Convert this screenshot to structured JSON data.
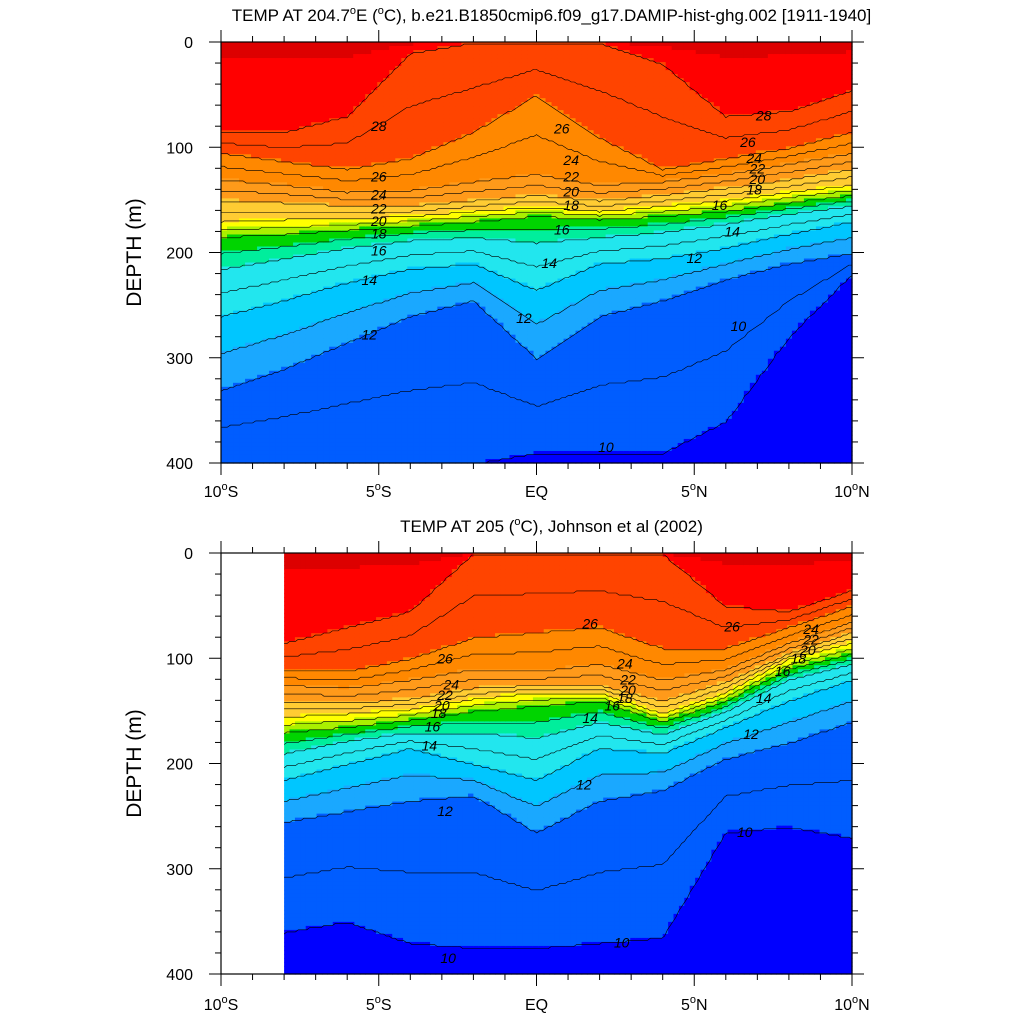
{
  "chart_data": [
    {
      "type": "heatmap",
      "subtype": "filled-contour",
      "title_prefix": "TEMP AT 204.7",
      "title_deg": "o",
      "title_suffix": "E (",
      "title_unit_deg": "o",
      "title_rest": "C), b.e21.B1850cmip6.f09_g17.DAMIP-hist-ghg.002 [1911-1940]",
      "ylabel": "DEPTH (m)",
      "ylim": [
        0,
        400
      ],
      "y_inverted": true,
      "xlim": [
        -10,
        10
      ],
      "x_ticks": [
        -10,
        -5,
        0,
        5,
        10
      ],
      "x_tick_labels": [
        {
          "num": "10",
          "deg": "o",
          "hem": "S"
        },
        {
          "num": "5",
          "deg": "o",
          "hem": "S"
        },
        {
          "num": "EQ",
          "deg": "",
          "hem": ""
        },
        {
          "num": "5",
          "deg": "o",
          "hem": "N"
        },
        {
          "num": "10",
          "deg": "o",
          "hem": "N"
        }
      ],
      "y_ticks": [
        0,
        100,
        200,
        300,
        400
      ],
      "y_tick_labels": [
        "0",
        "100",
        "200",
        "300",
        "400"
      ],
      "data_start_lat": -10,
      "contour_levels": [
        10,
        12,
        14,
        16,
        18,
        20,
        22,
        24,
        26,
        28
      ],
      "isotherm_depths": {
        "x": [
          -10,
          -8,
          -6,
          -4,
          -2,
          0,
          2,
          4,
          6,
          8,
          10
        ],
        "t28": [
          85,
          85,
          70,
          10,
          0,
          0,
          0,
          20,
          70,
          65,
          45
        ],
        "t26": [
          105,
          113,
          120,
          110,
          85,
          50,
          90,
          120,
          110,
          100,
          85
        ],
        "t24": [
          130,
          135,
          142,
          140,
          132,
          125,
          135,
          132,
          125,
          115,
          105
        ],
        "t22": [
          150,
          152,
          155,
          155,
          150,
          145,
          150,
          145,
          138,
          130,
          120
        ],
        "t20": [
          170,
          168,
          167,
          165,
          160,
          156,
          160,
          155,
          150,
          142,
          135
        ],
        "t18": [
          185,
          182,
          178,
          174,
          170,
          165,
          168,
          165,
          160,
          152,
          145
        ],
        "t16": [
          215,
          205,
          195,
          188,
          185,
          190,
          185,
          180,
          172,
          163,
          155
        ],
        "t14": [
          260,
          245,
          228,
          215,
          210,
          235,
          210,
          205,
          195,
          182,
          170
        ],
        "t12": [
          330,
          310,
          285,
          260,
          245,
          300,
          260,
          245,
          225,
          210,
          200
        ],
        "t10": [
          400,
          400,
          400,
          400,
          400,
          390,
          390,
          390,
          360,
          280,
          220
        ]
      },
      "labels": [
        {
          "t": "28",
          "x": -5,
          "y": 80
        },
        {
          "t": "26",
          "x": 0.8,
          "y": 82
        },
        {
          "t": "28",
          "x": 7.2,
          "y": 70
        },
        {
          "t": "26",
          "x": 6.7,
          "y": 95
        },
        {
          "t": "24",
          "x": 6.9,
          "y": 110
        },
        {
          "t": "22",
          "x": 7.0,
          "y": 120
        },
        {
          "t": "20",
          "x": 7.0,
          "y": 130
        },
        {
          "t": "18",
          "x": 6.9,
          "y": 140
        },
        {
          "t": "16",
          "x": 5.8,
          "y": 155
        },
        {
          "t": "14",
          "x": 6.2,
          "y": 180
        },
        {
          "t": "12",
          "x": 5.0,
          "y": 205
        },
        {
          "t": "10",
          "x": 6.4,
          "y": 270
        },
        {
          "t": "10",
          "x": 2.2,
          "y": 385
        },
        {
          "t": "26",
          "x": -5.0,
          "y": 128
        },
        {
          "t": "24",
          "x": -5.0,
          "y": 145
        },
        {
          "t": "22",
          "x": -5.0,
          "y": 158
        },
        {
          "t": "20",
          "x": -5.0,
          "y": 170
        },
        {
          "t": "18",
          "x": -5.0,
          "y": 182
        },
        {
          "t": "16",
          "x": -5.0,
          "y": 198
        },
        {
          "t": "14",
          "x": -5.3,
          "y": 226
        },
        {
          "t": "12",
          "x": -5.3,
          "y": 278
        },
        {
          "t": "24",
          "x": 1.1,
          "y": 112
        },
        {
          "t": "22",
          "x": 1.1,
          "y": 128
        },
        {
          "t": "20",
          "x": 1.1,
          "y": 142
        },
        {
          "t": "18",
          "x": 1.1,
          "y": 155
        },
        {
          "t": "16",
          "x": 0.8,
          "y": 178
        },
        {
          "t": "14",
          "x": 0.4,
          "y": 210
        },
        {
          "t": "12",
          "x": -0.4,
          "y": 262
        }
      ]
    },
    {
      "type": "heatmap",
      "subtype": "filled-contour",
      "title_prefix": "TEMP AT 205 (",
      "title_deg": "o",
      "title_suffix": "C), Johnson et al (2002)",
      "title_unit_deg": "",
      "title_rest": "",
      "ylabel": "DEPTH (m)",
      "ylim": [
        0,
        400
      ],
      "y_inverted": true,
      "xlim": [
        -10,
        10
      ],
      "x_ticks": [
        -10,
        -5,
        0,
        5,
        10
      ],
      "x_tick_labels": [
        {
          "num": "10",
          "deg": "o",
          "hem": "S"
        },
        {
          "num": "5",
          "deg": "o",
          "hem": "S"
        },
        {
          "num": "EQ",
          "deg": "",
          "hem": ""
        },
        {
          "num": "5",
          "deg": "o",
          "hem": "N"
        },
        {
          "num": "10",
          "deg": "o",
          "hem": "N"
        }
      ],
      "y_ticks": [
        0,
        100,
        200,
        300,
        400
      ],
      "y_tick_labels": [
        "0",
        "100",
        "200",
        "300",
        "400"
      ],
      "data_start_lat": -8,
      "contour_levels": [
        10,
        12,
        14,
        16,
        18,
        20,
        22,
        24,
        26,
        28
      ],
      "isotherm_depths": {
        "x": [
          -8,
          -6,
          -4,
          -2,
          0,
          2,
          4,
          6,
          8,
          10
        ],
        "t28": [
          85,
          70,
          55,
          0,
          0,
          0,
          0,
          50,
          55,
          35
        ],
        "t26": [
          110,
          112,
          100,
          80,
          75,
          70,
          90,
          90,
          70,
          50
        ],
        "t24": [
          125,
          128,
          120,
          110,
          112,
          105,
          120,
          110,
          85,
          65
        ],
        "t22": [
          140,
          142,
          138,
          128,
          125,
          125,
          140,
          122,
          95,
          75
        ],
        "t20": [
          155,
          152,
          148,
          138,
          132,
          132,
          152,
          132,
          100,
          85
        ],
        "t18": [
          170,
          165,
          158,
          150,
          145,
          140,
          160,
          140,
          110,
          95
        ],
        "t16": [
          190,
          178,
          170,
          170,
          175,
          160,
          172,
          150,
          120,
          105
        ],
        "t14": [
          215,
          200,
          185,
          200,
          215,
          185,
          190,
          165,
          140,
          120
        ],
        "t12": [
          255,
          245,
          235,
          230,
          265,
          235,
          225,
          195,
          180,
          160
        ],
        "t10": [
          360,
          350,
          370,
          375,
          375,
          370,
          365,
          265,
          260,
          270
        ]
      },
      "labels": [
        {
          "t": "26",
          "x": -2.9,
          "y": 100
        },
        {
          "t": "26",
          "x": 1.7,
          "y": 67
        },
        {
          "t": "26",
          "x": 6.2,
          "y": 70
        },
        {
          "t": "24",
          "x": -2.7,
          "y": 125
        },
        {
          "t": "22",
          "x": -2.9,
          "y": 135
        },
        {
          "t": "20",
          "x": -3.0,
          "y": 145
        },
        {
          "t": "18",
          "x": -3.1,
          "y": 152
        },
        {
          "t": "16",
          "x": -3.3,
          "y": 165
        },
        {
          "t": "14",
          "x": -3.4,
          "y": 183
        },
        {
          "t": "12",
          "x": -2.9,
          "y": 245
        },
        {
          "t": "24",
          "x": 2.8,
          "y": 105
        },
        {
          "t": "22",
          "x": 2.9,
          "y": 120
        },
        {
          "t": "20",
          "x": 2.9,
          "y": 130
        },
        {
          "t": "18",
          "x": 2.8,
          "y": 138
        },
        {
          "t": "16",
          "x": 2.4,
          "y": 145
        },
        {
          "t": "14",
          "x": 1.7,
          "y": 157
        },
        {
          "t": "12",
          "x": 1.5,
          "y": 220
        },
        {
          "t": "10",
          "x": 2.7,
          "y": 370
        },
        {
          "t": "10",
          "x": -2.8,
          "y": 385
        },
        {
          "t": "14",
          "x": 7.2,
          "y": 138
        },
        {
          "t": "16",
          "x": 7.8,
          "y": 112
        },
        {
          "t": "12",
          "x": 6.8,
          "y": 172
        },
        {
          "t": "10",
          "x": 6.6,
          "y": 265
        },
        {
          "t": "24",
          "x": 8.7,
          "y": 72
        },
        {
          "t": "22",
          "x": 8.7,
          "y": 82
        },
        {
          "t": "20",
          "x": 8.6,
          "y": 92
        },
        {
          "t": "18",
          "x": 8.3,
          "y": 100
        }
      ]
    }
  ],
  "colors": {
    "fill_levels": [
      "#0000ff",
      "#005dff",
      "#1aa8ff",
      "#00c6ff",
      "#22e6ee",
      "#00ee9c",
      "#00d400",
      "#aaf000",
      "#ffff00",
      "#ffcc33",
      "#ff9a1a",
      "#ff8800",
      "#ff4400",
      "#ff0000",
      "#dd0000"
    ]
  }
}
